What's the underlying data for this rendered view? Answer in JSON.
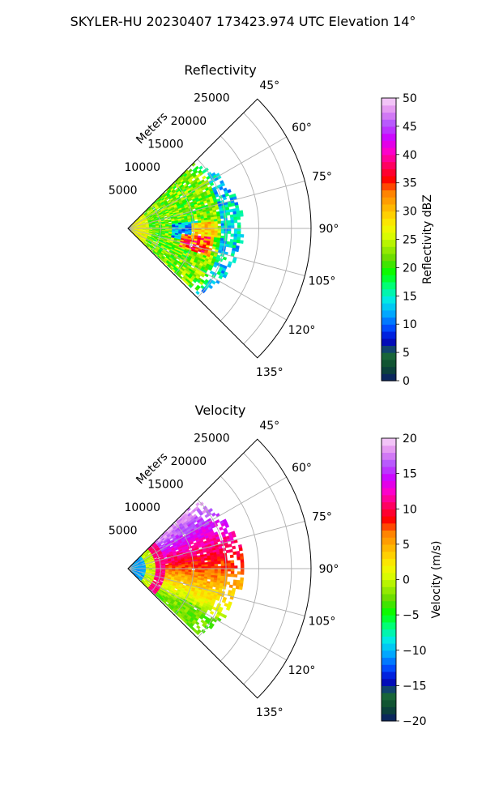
{
  "figure": {
    "title": "SKYLER-HU  20230407  173423.974 UTC Elevation 14°"
  },
  "chart_data": [
    {
      "type": "heatmap",
      "title": "Reflectivity",
      "radial_label": "Meters",
      "radial_ticks": [
        "5000",
        "10000",
        "15000",
        "20000",
        "25000"
      ],
      "radial_tick_values": [
        5000,
        10000,
        15000,
        20000,
        25000
      ],
      "r_max": 28000,
      "azimuth_ticks": [
        "45°",
        "60°",
        "75°",
        "90°",
        "105°",
        "120°",
        "135°"
      ],
      "azimuth_tick_values": [
        45,
        60,
        75,
        90,
        105,
        120,
        135
      ],
      "azimuth_range": [
        45,
        135
      ],
      "data_extent_m": 17500,
      "grid": true,
      "colorbar": {
        "label": "Reflectivity dBZ",
        "range": [
          0,
          50
        ],
        "ticks": [
          "0",
          "5",
          "10",
          "15",
          "20",
          "25",
          "30",
          "35",
          "40",
          "45",
          "50"
        ],
        "tick_values": [
          0,
          5,
          10,
          15,
          20,
          25,
          30,
          35,
          40,
          45,
          50
        ]
      }
    },
    {
      "type": "heatmap",
      "title": "Velocity",
      "radial_label": "Meters",
      "radial_ticks": [
        "5000",
        "10000",
        "15000",
        "20000",
        "25000"
      ],
      "radial_tick_values": [
        5000,
        10000,
        15000,
        20000,
        25000
      ],
      "r_max": 28000,
      "azimuth_ticks": [
        "45°",
        "60°",
        "75°",
        "90°",
        "105°",
        "120°",
        "135°"
      ],
      "azimuth_tick_values": [
        45,
        60,
        75,
        90,
        105,
        120,
        135
      ],
      "azimuth_range": [
        45,
        135
      ],
      "data_extent_m": 17500,
      "grid": true,
      "colorbar": {
        "label": "Velocity (m/s)",
        "range": [
          -20,
          20
        ],
        "ticks": [
          "−20",
          "−15",
          "−10",
          "−5",
          "0",
          "5",
          "10",
          "15",
          "20"
        ],
        "tick_values": [
          -20,
          -15,
          -10,
          -5,
          0,
          5,
          10,
          15,
          20
        ]
      }
    }
  ],
  "colormap": {
    "stops": [
      "#0a1a6e",
      "#0d4a2e",
      "#1a6a3a",
      "#0000c8",
      "#0050ff",
      "#00a8ff",
      "#00e8e8",
      "#00ff80",
      "#00ff00",
      "#60d800",
      "#a8f000",
      "#e8ff00",
      "#ffe000",
      "#ffb000",
      "#ff8000",
      "#ff0000",
      "#ff0060",
      "#ff00c8",
      "#d000ff",
      "#b050ff",
      "#e08cf0",
      "#f8d8fa"
    ]
  }
}
